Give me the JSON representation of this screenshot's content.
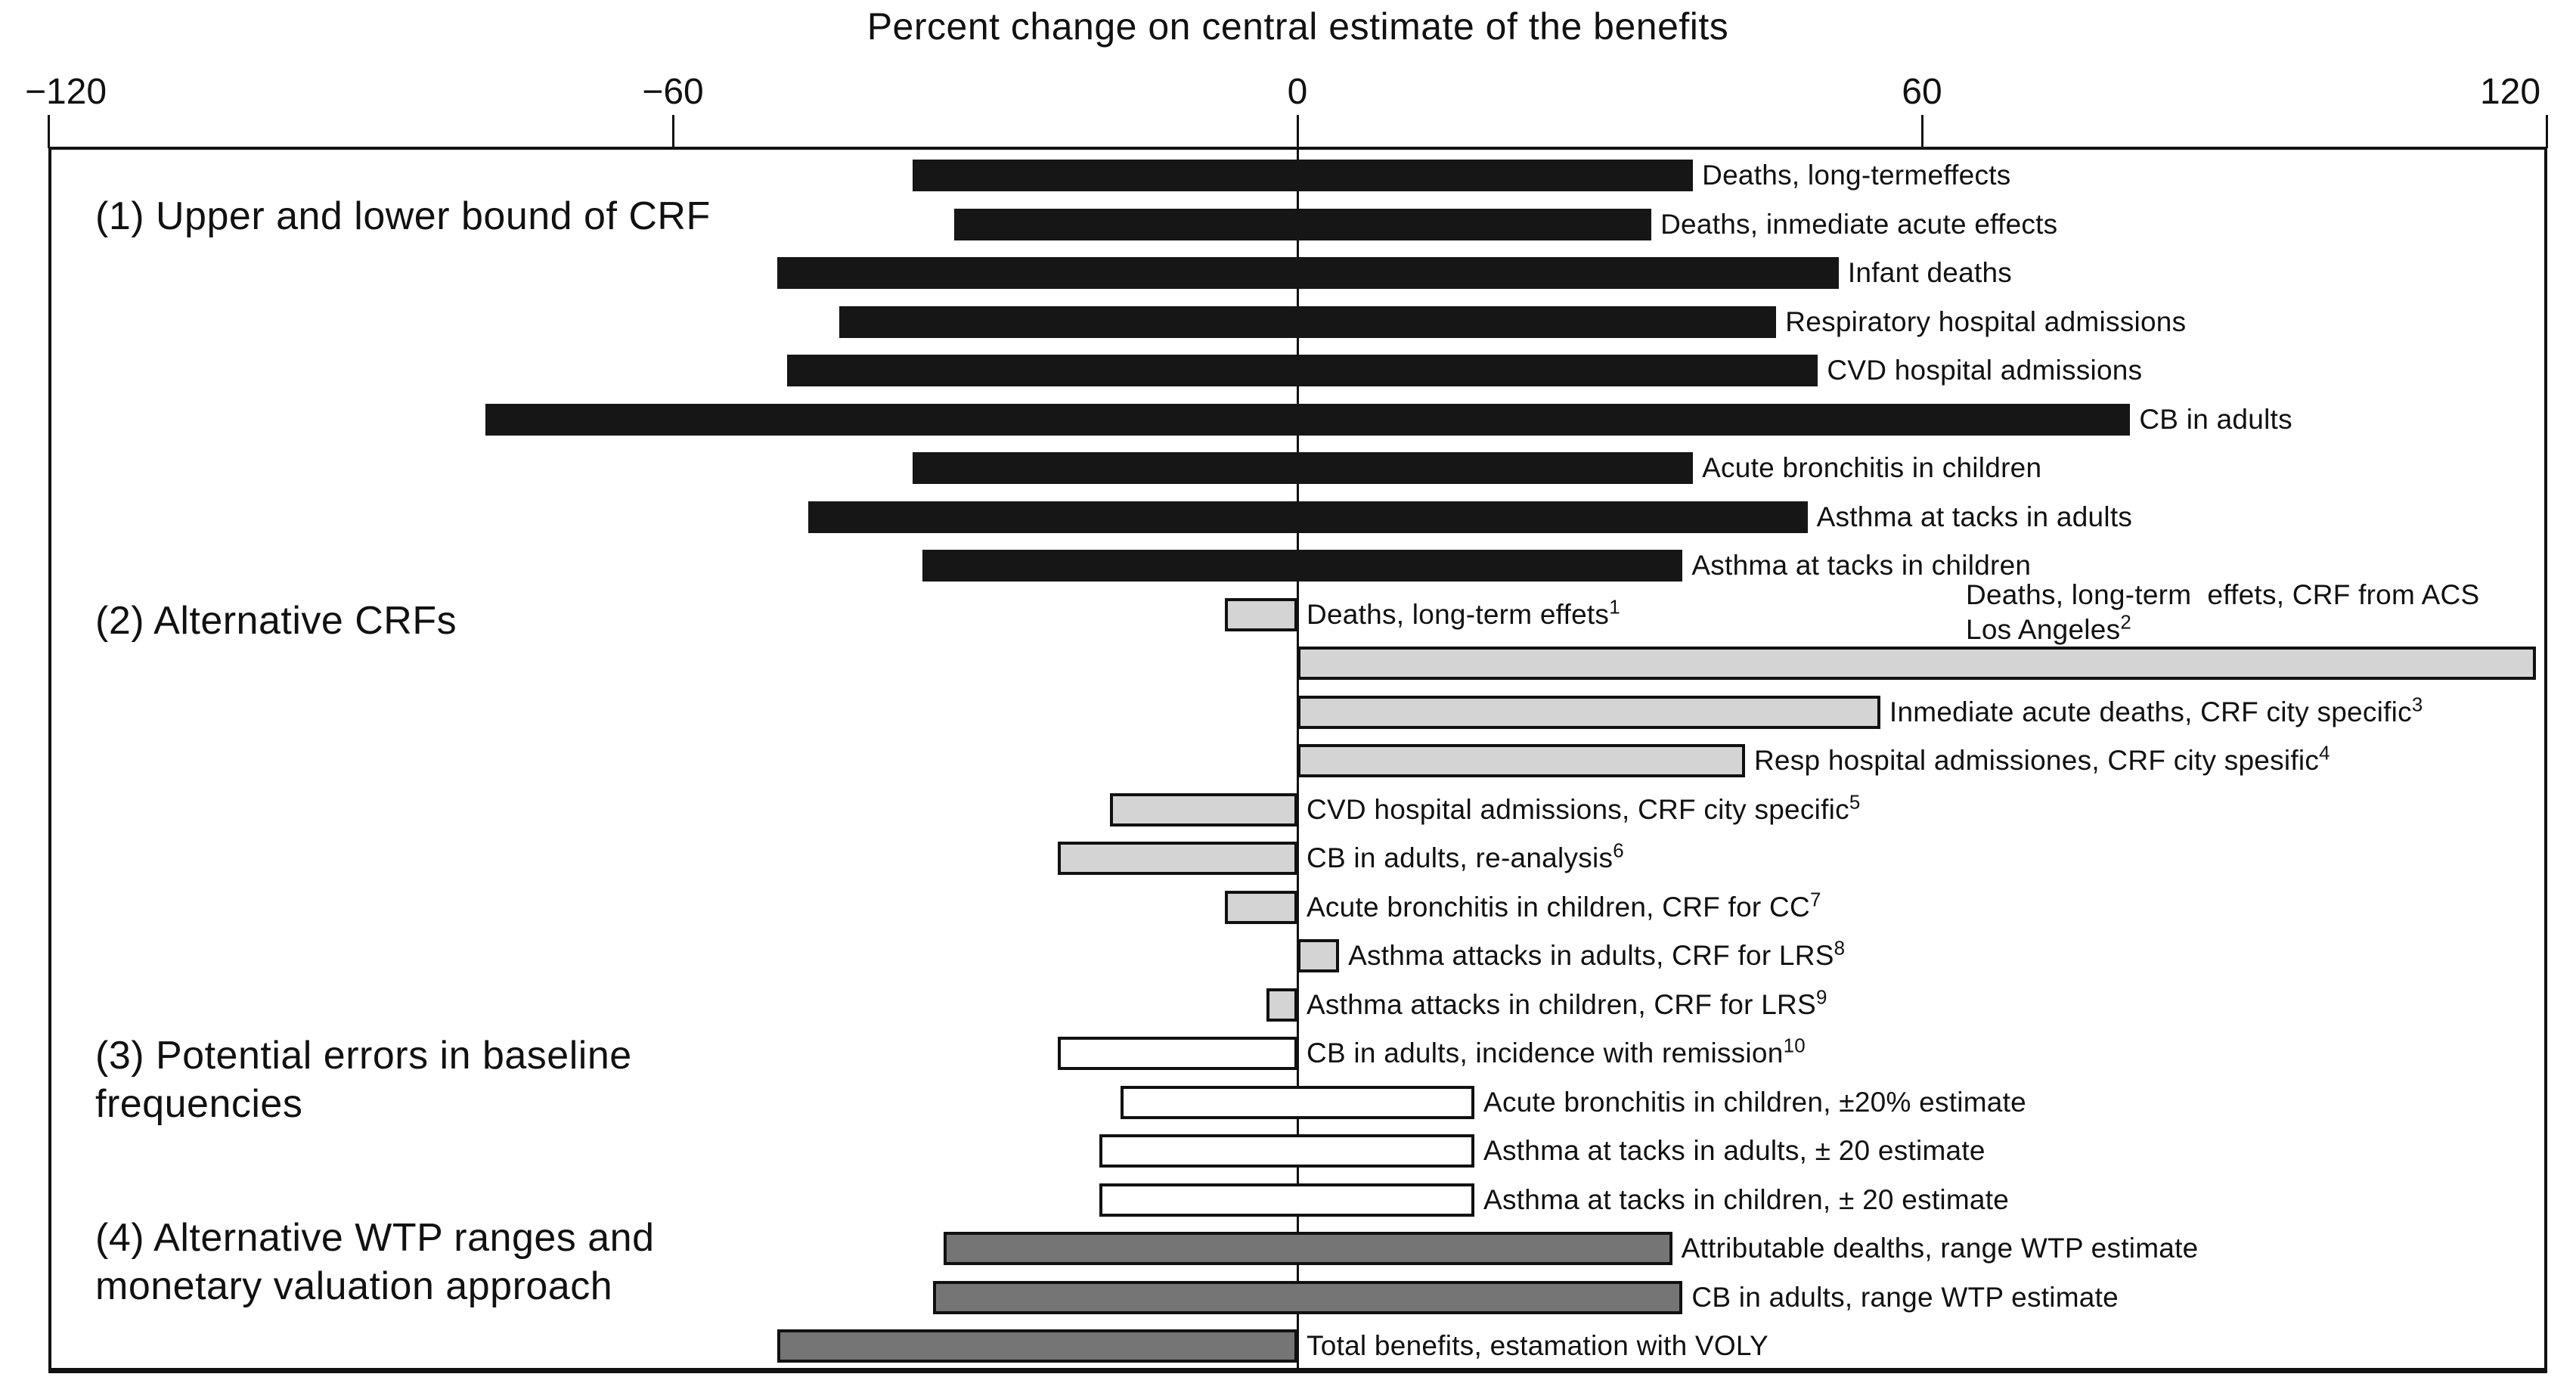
{
  "chart_data": {
    "type": "bar",
    "orientation": "horizontal",
    "units": "percent",
    "title": "Percent change on central estimate of the benefits",
    "grid": false,
    "legend": null,
    "axis": {
      "position": "top",
      "min": -120,
      "max": 120,
      "ticks": [
        {
          "value": -120,
          "label": "−120"
        },
        {
          "value": -60,
          "label": "−60"
        },
        {
          "value": 0,
          "label": "0"
        },
        {
          "value": 60,
          "label": "60"
        },
        {
          "value": 120,
          "label": "120"
        }
      ]
    },
    "sections": [
      {
        "id": 1,
        "lines": [
          "(1) Upper and lower bound of CRF"
        ]
      },
      {
        "id": 2,
        "lines": [
          "(2) Alternative CRFs"
        ]
      },
      {
        "id": 3,
        "lines": [
          "(3) Potential errors in baseline",
          "frequencies"
        ]
      },
      {
        "id": 4,
        "lines": [
          "(4) Alternative WTP ranges and",
          "monetary valuation approach"
        ]
      }
    ],
    "rows": [
      {
        "section": 1,
        "label": "Deaths, long-termeffects",
        "sup": "",
        "start": -37,
        "end": 38
      },
      {
        "section": 1,
        "label": "Deaths, inmediate acute effects",
        "sup": "",
        "start": -33,
        "end": 34
      },
      {
        "section": 1,
        "label": "Infant deaths",
        "sup": "",
        "start": -50,
        "end": 52
      },
      {
        "section": 1,
        "label": "Respiratory hospital admissions",
        "sup": "",
        "start": -44,
        "end": 46
      },
      {
        "section": 1,
        "label": "CVD hospital admissions",
        "sup": "",
        "start": -49,
        "end": 50
      },
      {
        "section": 1,
        "label": "CB in adults",
        "sup": "",
        "start": -78,
        "end": 80
      },
      {
        "section": 1,
        "label": "Acute bronchitis in children",
        "sup": "",
        "start": -37,
        "end": 38
      },
      {
        "section": 1,
        "label": "Asthma at tacks in adults",
        "sup": "",
        "start": -47,
        "end": 49
      },
      {
        "section": 1,
        "label": "Asthma at tacks in children",
        "sup": "",
        "start": -36,
        "end": 37
      },
      {
        "section": 2,
        "label": "Deaths, long-term effets",
        "sup": "1",
        "start": -7,
        "end": 0
      },
      {
        "section": 2,
        "label": "Deaths, long-term  effets, CRF from ACS Los Angeles",
        "sup": "2",
        "start": 0,
        "end": 119,
        "label_placement": "above",
        "label_lines": [
          "Deaths, long-term  effets, CRF from ACS",
          "Los Angeles"
        ]
      },
      {
        "section": 2,
        "label": "Inmediate acute deaths, CRF city specific",
        "sup": "3",
        "start": 0,
        "end": 56
      },
      {
        "section": 2,
        "label": "Resp hospital admissiones, CRF city spesific",
        "sup": "4",
        "start": 0,
        "end": 43
      },
      {
        "section": 2,
        "label": "CVD hospital admissions, CRF city specific",
        "sup": "5",
        "start": -18,
        "end": 0
      },
      {
        "section": 2,
        "label": "CB in adults, re-analysis",
        "sup": "6",
        "start": -23,
        "end": 0
      },
      {
        "section": 2,
        "label": "Acute bronchitis in children, CRF for CC",
        "sup": "7",
        "start": -7,
        "end": 0
      },
      {
        "section": 2,
        "label": "Asthma attacks in adults, CRF for LRS",
        "sup": "8",
        "start": 0,
        "end": 4
      },
      {
        "section": 2,
        "label": "Asthma attacks in children, CRF for LRS",
        "sup": "9",
        "start": -3,
        "end": 0
      },
      {
        "section": 3,
        "label": "CB in adults, incidence with remission",
        "sup": "10",
        "start": -23,
        "end": 0
      },
      {
        "section": 3,
        "label": "Acute bronchitis in children, ±20% estimate",
        "sup": "",
        "start": -17,
        "end": 17
      },
      {
        "section": 3,
        "label": "Asthma at tacks in adults, ± 20 estimate",
        "sup": "",
        "start": -19,
        "end": 17
      },
      {
        "section": 3,
        "label": "Asthma at tacks in children, ± 20 estimate",
        "sup": "",
        "start": -19,
        "end": 17
      },
      {
        "section": 4,
        "label": "Attributable dealths, range WTP estimate",
        "sup": "",
        "start": -34,
        "end": 36
      },
      {
        "section": 4,
        "label": "CB in adults, range WTP estimate",
        "sup": "",
        "start": -35,
        "end": 37
      },
      {
        "section": 4,
        "label": "Total benefits, estamation with VOLY",
        "sup": "",
        "start": -50,
        "end": 0
      }
    ],
    "colors": {
      "section1_fill": "#161616",
      "section2_fill": "#d4d4d4",
      "section3_fill": "#ffffff",
      "section4_fill": "#757575",
      "bar_border": "#111111",
      "axis": "#111111",
      "text": "#111111",
      "background": "#ffffff"
    }
  }
}
